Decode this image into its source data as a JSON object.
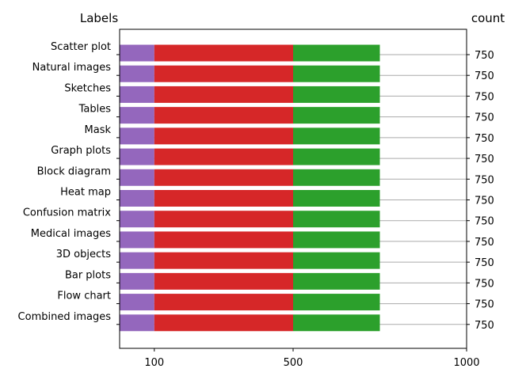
{
  "chart_data": {
    "type": "bar",
    "orientation": "horizontal",
    "stacked": true,
    "left_header": "Labels",
    "right_header": "count",
    "categories": [
      "Scatter plot",
      "Natural images",
      "Sketches",
      "Tables",
      "Mask",
      "Graph plots",
      "Block diagram",
      "Heat map",
      "Confusion matrix",
      "Medical images",
      "3D objects",
      "Bar plots",
      "Flow chart",
      "Combined images"
    ],
    "series": [
      {
        "color": "#9467bd",
        "values": [
          100,
          100,
          100,
          100,
          100,
          100,
          100,
          100,
          100,
          100,
          100,
          100,
          100,
          100
        ]
      },
      {
        "color": "#d62728",
        "values": [
          400,
          400,
          400,
          400,
          400,
          400,
          400,
          400,
          400,
          400,
          400,
          400,
          400,
          400
        ]
      },
      {
        "color": "#2ca02c",
        "values": [
          250,
          250,
          250,
          250,
          250,
          250,
          250,
          250,
          250,
          250,
          250,
          250,
          250,
          250
        ]
      }
    ],
    "counts": [
      "750",
      "750",
      "750",
      "750",
      "750",
      "750",
      "750",
      "750",
      "750",
      "750",
      "750",
      "750",
      "750",
      "750"
    ],
    "xlim": [
      0,
      1000
    ],
    "xticks": [
      100,
      500,
      1000
    ],
    "xtick_labels": [
      "100",
      "500",
      "1000"
    ],
    "grid": "horizontal-lines"
  }
}
